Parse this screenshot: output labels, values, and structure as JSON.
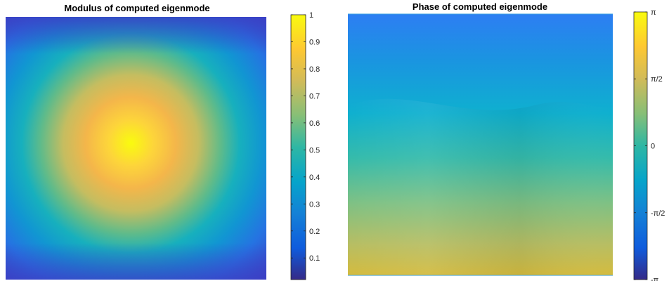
{
  "chart_data": [
    {
      "type": "heatmap",
      "title": "Modulus of computed eigenmode",
      "xlabel": "",
      "ylabel": "",
      "description_values": {
        "peak_value": 1.0,
        "peak_location": "center",
        "edge_value": 0.15,
        "corner_value": 0.1
      },
      "colorbar": {
        "ticks": [
          "0.1",
          "0.2",
          "0.3",
          "0.4",
          "0.5",
          "0.6",
          "0.7",
          "0.8",
          "0.9",
          "1"
        ],
        "range": [
          0.02,
          1.0
        ]
      },
      "colormap": "parula"
    },
    {
      "type": "heatmap",
      "title": "Phase of computed eigenmode",
      "xlabel": "",
      "ylabel": "",
      "description_values": {
        "top_value": -1.75,
        "bottom_value": 1.4,
        "variation": "smooth vertical gradient with slight wavy contour"
      },
      "colorbar": {
        "ticks": [
          "-π",
          "-π/2",
          "0",
          "π/2",
          "π"
        ],
        "range": [
          -3.14159,
          3.14159
        ]
      },
      "colormap": "parula"
    }
  ]
}
